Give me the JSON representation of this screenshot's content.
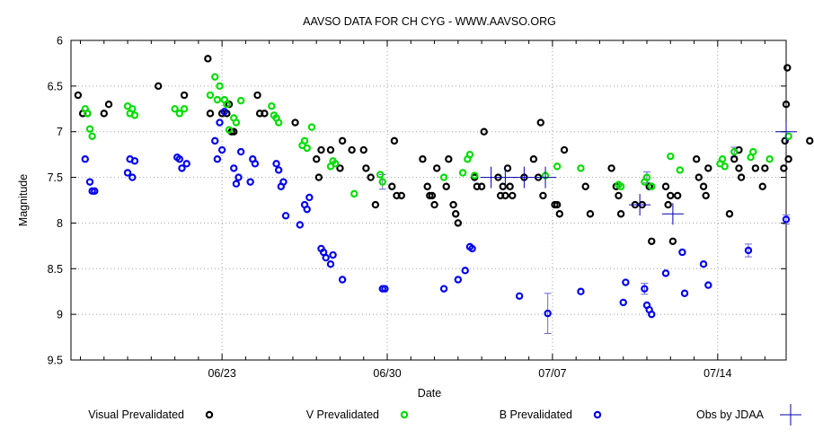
{
  "chart_data": {
    "type": "scatter",
    "title": "AAVSO DATA FOR CH CYG - WWW.AAVSO.ORG",
    "xlabel": "Date",
    "ylabel": "Magnitude",
    "xlim": [
      0.6,
      30.9
    ],
    "ylim": [
      6.0,
      9.5
    ],
    "y_inverted": true,
    "y_ticks": [
      6,
      6.5,
      7,
      7.5,
      8,
      8.5,
      9,
      9.5
    ],
    "y_tick_labels": [
      "6",
      "6.5",
      "7",
      "7.5",
      "8",
      "8.5",
      "9",
      "9.5"
    ],
    "x_ticks": [
      7,
      14,
      21,
      28
    ],
    "x_tick_labels": [
      "06/23",
      "06/30",
      "07/07",
      "07/14"
    ],
    "x_units": "days since 06/16",
    "colors": {
      "visual": "#000000",
      "v": "#00dd00",
      "b": "#0000ee",
      "jdaa": "#0000aa"
    },
    "legend": [
      {
        "key": "visual",
        "label": "Visual Prevalidated"
      },
      {
        "key": "v",
        "label": "V Prevalidated"
      },
      {
        "key": "b",
        "label": "B Prevalidated"
      },
      {
        "key": "jdaa",
        "label": "Obs by JDAA"
      }
    ],
    "series": [
      {
        "name": "Visual Prevalidated",
        "key": "visual",
        "points": [
          [
            0.9,
            6.6
          ],
          [
            1.1,
            6.8
          ],
          [
            1.3,
            6.8
          ],
          [
            2.0,
            6.8
          ],
          [
            2.2,
            6.7
          ],
          [
            4.3,
            6.5
          ],
          [
            5.4,
            6.6
          ],
          [
            6.4,
            6.2
          ],
          [
            6.5,
            6.8
          ],
          [
            7.0,
            6.8
          ],
          [
            7.2,
            6.8
          ],
          [
            7.3,
            6.7
          ],
          [
            7.4,
            7.0
          ],
          [
            7.5,
            7.0
          ],
          [
            8.5,
            6.6
          ],
          [
            8.6,
            6.8
          ],
          [
            8.8,
            6.8
          ],
          [
            10.1,
            6.9
          ],
          [
            11.0,
            7.3
          ],
          [
            11.1,
            7.5
          ],
          [
            11.2,
            7.2
          ],
          [
            11.6,
            7.2
          ],
          [
            12.0,
            7.4
          ],
          [
            12.1,
            7.1
          ],
          [
            12.5,
            7.2
          ],
          [
            13.0,
            7.2
          ],
          [
            13.1,
            7.4
          ],
          [
            13.3,
            7.5
          ],
          [
            13.5,
            7.8
          ],
          [
            14.2,
            7.6
          ],
          [
            14.3,
            7.1
          ],
          [
            14.4,
            7.7
          ],
          [
            14.6,
            7.7
          ],
          [
            15.5,
            7.3
          ],
          [
            15.7,
            7.6
          ],
          [
            15.8,
            7.7
          ],
          [
            15.9,
            7.7
          ],
          [
            16.0,
            7.8
          ],
          [
            16.1,
            7.4
          ],
          [
            16.5,
            7.6
          ],
          [
            16.6,
            7.3
          ],
          [
            16.8,
            7.8
          ],
          [
            16.9,
            7.9
          ],
          [
            17.0,
            8.0
          ],
          [
            17.7,
            7.5
          ],
          [
            17.8,
            7.6
          ],
          [
            18.0,
            7.6
          ],
          [
            18.1,
            7.0
          ],
          [
            18.7,
            7.5
          ],
          [
            18.8,
            7.7
          ],
          [
            18.9,
            7.6
          ],
          [
            19.0,
            7.7
          ],
          [
            19.1,
            7.4
          ],
          [
            19.2,
            7.6
          ],
          [
            19.3,
            7.7
          ],
          [
            19.8,
            7.5
          ],
          [
            20.2,
            7.3
          ],
          [
            20.4,
            7.5
          ],
          [
            20.5,
            6.9
          ],
          [
            20.6,
            7.7
          ],
          [
            21.1,
            7.8
          ],
          [
            21.2,
            7.8
          ],
          [
            21.3,
            7.9
          ],
          [
            21.5,
            7.2
          ],
          [
            22.4,
            7.6
          ],
          [
            22.6,
            7.9
          ],
          [
            23.5,
            7.4
          ],
          [
            23.7,
            7.6
          ],
          [
            23.8,
            7.7
          ],
          [
            23.9,
            7.9
          ],
          [
            24.5,
            7.8
          ],
          [
            24.8,
            7.8
          ],
          [
            25.1,
            7.6
          ],
          [
            25.2,
            8.2
          ],
          [
            25.8,
            7.6
          ],
          [
            25.9,
            7.8
          ],
          [
            26.0,
            7.7
          ],
          [
            26.1,
            8.2
          ],
          [
            26.3,
            7.7
          ],
          [
            27.1,
            7.3
          ],
          [
            27.2,
            7.5
          ],
          [
            27.4,
            7.6
          ],
          [
            27.5,
            7.7
          ],
          [
            27.6,
            7.4
          ],
          [
            28.5,
            7.9
          ],
          [
            28.7,
            7.3
          ],
          [
            28.9,
            7.4
          ],
          [
            28.9,
            7.2
          ],
          [
            29.0,
            7.5
          ],
          [
            29.6,
            7.4
          ],
          [
            29.9,
            7.6
          ],
          [
            30.0,
            7.4
          ],
          [
            30.8,
            7.4
          ],
          [
            30.85,
            7.1
          ],
          [
            30.9,
            6.7
          ],
          [
            30.95,
            6.3
          ],
          [
            31.0,
            7.3
          ],
          [
            31.9,
            7.1
          ]
        ]
      },
      {
        "name": "V Prevalidated",
        "key": "v",
        "points": [
          [
            1.2,
            6.75
          ],
          [
            1.3,
            6.8
          ],
          [
            1.4,
            6.97
          ],
          [
            1.5,
            7.05
          ],
          [
            3.0,
            6.72
          ],
          [
            3.1,
            6.8
          ],
          [
            3.2,
            6.75
          ],
          [
            3.3,
            6.82
          ],
          [
            5.0,
            6.75
          ],
          [
            5.2,
            6.8
          ],
          [
            5.4,
            6.75
          ],
          [
            6.5,
            6.6
          ],
          [
            6.7,
            6.4
          ],
          [
            6.8,
            6.65
          ],
          [
            6.9,
            6.5
          ],
          [
            7.1,
            6.65
          ],
          [
            7.2,
            6.7
          ],
          [
            7.3,
            6.98
          ],
          [
            7.5,
            6.85
          ],
          [
            7.6,
            6.9
          ],
          [
            7.8,
            6.66
          ],
          [
            9.1,
            6.72
          ],
          [
            9.2,
            6.82
          ],
          [
            9.3,
            6.85
          ],
          [
            9.4,
            6.9
          ],
          [
            10.4,
            7.15
          ],
          [
            10.5,
            7.1
          ],
          [
            10.6,
            7.18
          ],
          [
            10.8,
            6.95
          ],
          [
            11.6,
            7.38
          ],
          [
            11.7,
            7.32
          ],
          [
            11.8,
            7.35
          ],
          [
            12.6,
            7.68
          ],
          [
            13.7,
            7.47
          ],
          [
            13.8,
            7.55
          ],
          [
            16.4,
            7.5
          ],
          [
            17.2,
            7.45
          ],
          [
            17.4,
            7.3
          ],
          [
            17.5,
            7.25
          ],
          [
            17.7,
            7.48
          ],
          [
            20.7,
            7.48
          ],
          [
            21.2,
            7.38
          ],
          [
            22.2,
            7.4
          ],
          [
            23.8,
            7.58
          ],
          [
            23.9,
            7.6
          ],
          [
            24.9,
            7.55
          ],
          [
            25.0,
            7.5
          ],
          [
            25.2,
            7.6
          ],
          [
            26.0,
            7.27
          ],
          [
            26.4,
            7.42
          ],
          [
            28.1,
            7.35
          ],
          [
            28.2,
            7.3
          ],
          [
            28.3,
            7.38
          ],
          [
            28.7,
            7.22
          ],
          [
            29.4,
            7.28
          ],
          [
            29.5,
            7.22
          ],
          [
            30.2,
            7.3
          ],
          [
            31.0,
            7.05
          ]
        ]
      },
      {
        "name": "B Prevalidated",
        "key": "b",
        "points": [
          [
            1.2,
            7.3
          ],
          [
            1.4,
            7.55
          ],
          [
            1.5,
            7.65
          ],
          [
            1.6,
            7.65
          ],
          [
            3.0,
            7.45
          ],
          [
            3.1,
            7.3
          ],
          [
            3.2,
            7.5
          ],
          [
            3.3,
            7.32
          ],
          [
            5.1,
            7.28
          ],
          [
            5.2,
            7.3
          ],
          [
            5.3,
            7.4
          ],
          [
            5.5,
            7.35
          ],
          [
            6.7,
            7.1
          ],
          [
            6.8,
            7.3
          ],
          [
            6.9,
            6.9
          ],
          [
            7.0,
            7.2
          ],
          [
            7.1,
            6.78
          ],
          [
            7.5,
            7.4
          ],
          [
            7.6,
            7.57
          ],
          [
            7.7,
            7.5
          ],
          [
            7.8,
            7.22
          ],
          [
            8.2,
            7.55
          ],
          [
            8.3,
            7.3
          ],
          [
            8.4,
            7.35
          ],
          [
            9.3,
            7.35
          ],
          [
            9.4,
            7.42
          ],
          [
            9.5,
            7.6
          ],
          [
            9.6,
            7.55
          ],
          [
            9.7,
            7.92
          ],
          [
            10.3,
            8.02
          ],
          [
            10.5,
            7.8
          ],
          [
            10.6,
            7.85
          ],
          [
            10.7,
            7.72
          ],
          [
            11.2,
            8.28
          ],
          [
            11.3,
            8.32
          ],
          [
            11.4,
            8.38
          ],
          [
            11.6,
            8.45
          ],
          [
            11.7,
            8.35
          ],
          [
            12.1,
            8.62
          ],
          [
            13.8,
            8.72
          ],
          [
            13.9,
            8.72
          ],
          [
            16.4,
            8.72
          ],
          [
            17.0,
            8.62
          ],
          [
            17.3,
            8.52
          ],
          [
            17.5,
            8.26
          ],
          [
            17.6,
            8.28
          ],
          [
            19.6,
            8.8
          ],
          [
            20.8,
            8.99
          ],
          [
            22.2,
            8.75
          ],
          [
            24.0,
            8.87
          ],
          [
            24.1,
            8.65
          ],
          [
            24.9,
            8.72
          ],
          [
            25.0,
            8.9
          ],
          [
            25.1,
            8.95
          ],
          [
            25.2,
            9.0
          ],
          [
            25.8,
            8.55
          ],
          [
            26.5,
            8.32
          ],
          [
            26.6,
            8.77
          ],
          [
            27.4,
            8.45
          ],
          [
            27.6,
            8.68
          ],
          [
            29.3,
            8.3
          ],
          [
            30.9,
            7.96
          ]
        ]
      },
      {
        "name": "Obs by JDAA",
        "key": "jdaa",
        "points": [
          [
            18.4,
            7.5
          ],
          [
            19.0,
            7.5
          ],
          [
            19.8,
            7.5
          ],
          [
            20.7,
            7.5
          ],
          [
            24.7,
            7.8
          ],
          [
            26.1,
            7.9
          ],
          [
            30.9,
            7.0
          ]
        ]
      }
    ]
  }
}
